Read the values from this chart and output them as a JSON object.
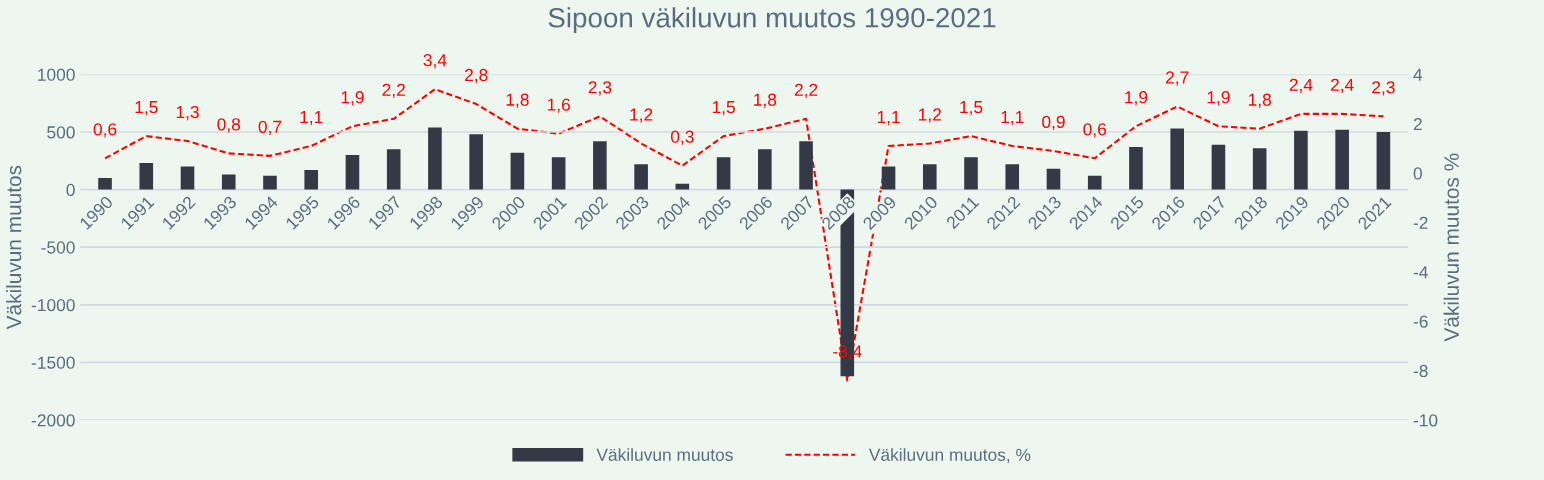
{
  "chart_data": {
    "type": "bar",
    "title": "Sipoon väkiluvun muutos 1990-2021",
    "ylabel": "Väkiluvun muutos",
    "y2label": "Väkiluvun muutos %",
    "categories": [
      "1990",
      "1991",
      "1992",
      "1993",
      "1994",
      "1995",
      "1996",
      "1997",
      "1998",
      "1999",
      "2000",
      "2001",
      "2002",
      "2003",
      "2004",
      "2005",
      "2006",
      "2007",
      "2008",
      "2009",
      "2010",
      "2011",
      "2012",
      "2013",
      "2014",
      "2015",
      "2016",
      "2017",
      "2018",
      "2019",
      "2020",
      "2021"
    ],
    "series": [
      {
        "name": "Väkiluvun muutos",
        "color": "#333a46",
        "values": [
          100,
          230,
          200,
          130,
          120,
          170,
          300,
          350,
          540,
          480,
          320,
          280,
          420,
          220,
          50,
          280,
          350,
          420,
          -1620,
          200,
          220,
          280,
          220,
          180,
          120,
          370,
          530,
          390,
          360,
          510,
          520,
          500
        ]
      },
      {
        "name": "Väkiluvun muutos, %",
        "type": "line",
        "axis": "y2",
        "color": "#ff0000",
        "line_style": "dashed",
        "value_labels": [
          "0,6",
          "1,5",
          "1,3",
          "0,8",
          "0,7",
          "1,1",
          "1,9",
          "2,2",
          "3,4",
          "2,8",
          "1,8",
          "1,6",
          "2,3",
          "1,2",
          "0,3",
          "1,5",
          "1,8",
          "2,2",
          "-8,4",
          "1,1",
          "1,2",
          "1,5",
          "1,1",
          "0,9",
          "0,6",
          "1,9",
          "2,7",
          "1,9",
          "1,8",
          "2,4",
          "2,4",
          "2,3"
        ],
        "values": [
          0.6,
          1.5,
          1.3,
          0.8,
          0.7,
          1.1,
          1.9,
          2.2,
          3.4,
          2.8,
          1.8,
          1.6,
          2.3,
          1.2,
          0.3,
          1.5,
          1.8,
          2.2,
          -8.4,
          1.1,
          1.2,
          1.5,
          1.1,
          0.9,
          0.6,
          1.9,
          2.7,
          1.9,
          1.8,
          2.4,
          2.4,
          2.3
        ]
      }
    ],
    "ylim": [
      -2000,
      1000
    ],
    "yticks": [
      -2000,
      -1500,
      -1000,
      -500,
      0,
      500,
      1000
    ],
    "y2lim": [
      -10,
      4
    ],
    "y2ticks": [
      -10,
      -8,
      -6,
      -4,
      -2,
      0,
      2,
      4
    ],
    "grid": "y",
    "legend": "bottom"
  }
}
